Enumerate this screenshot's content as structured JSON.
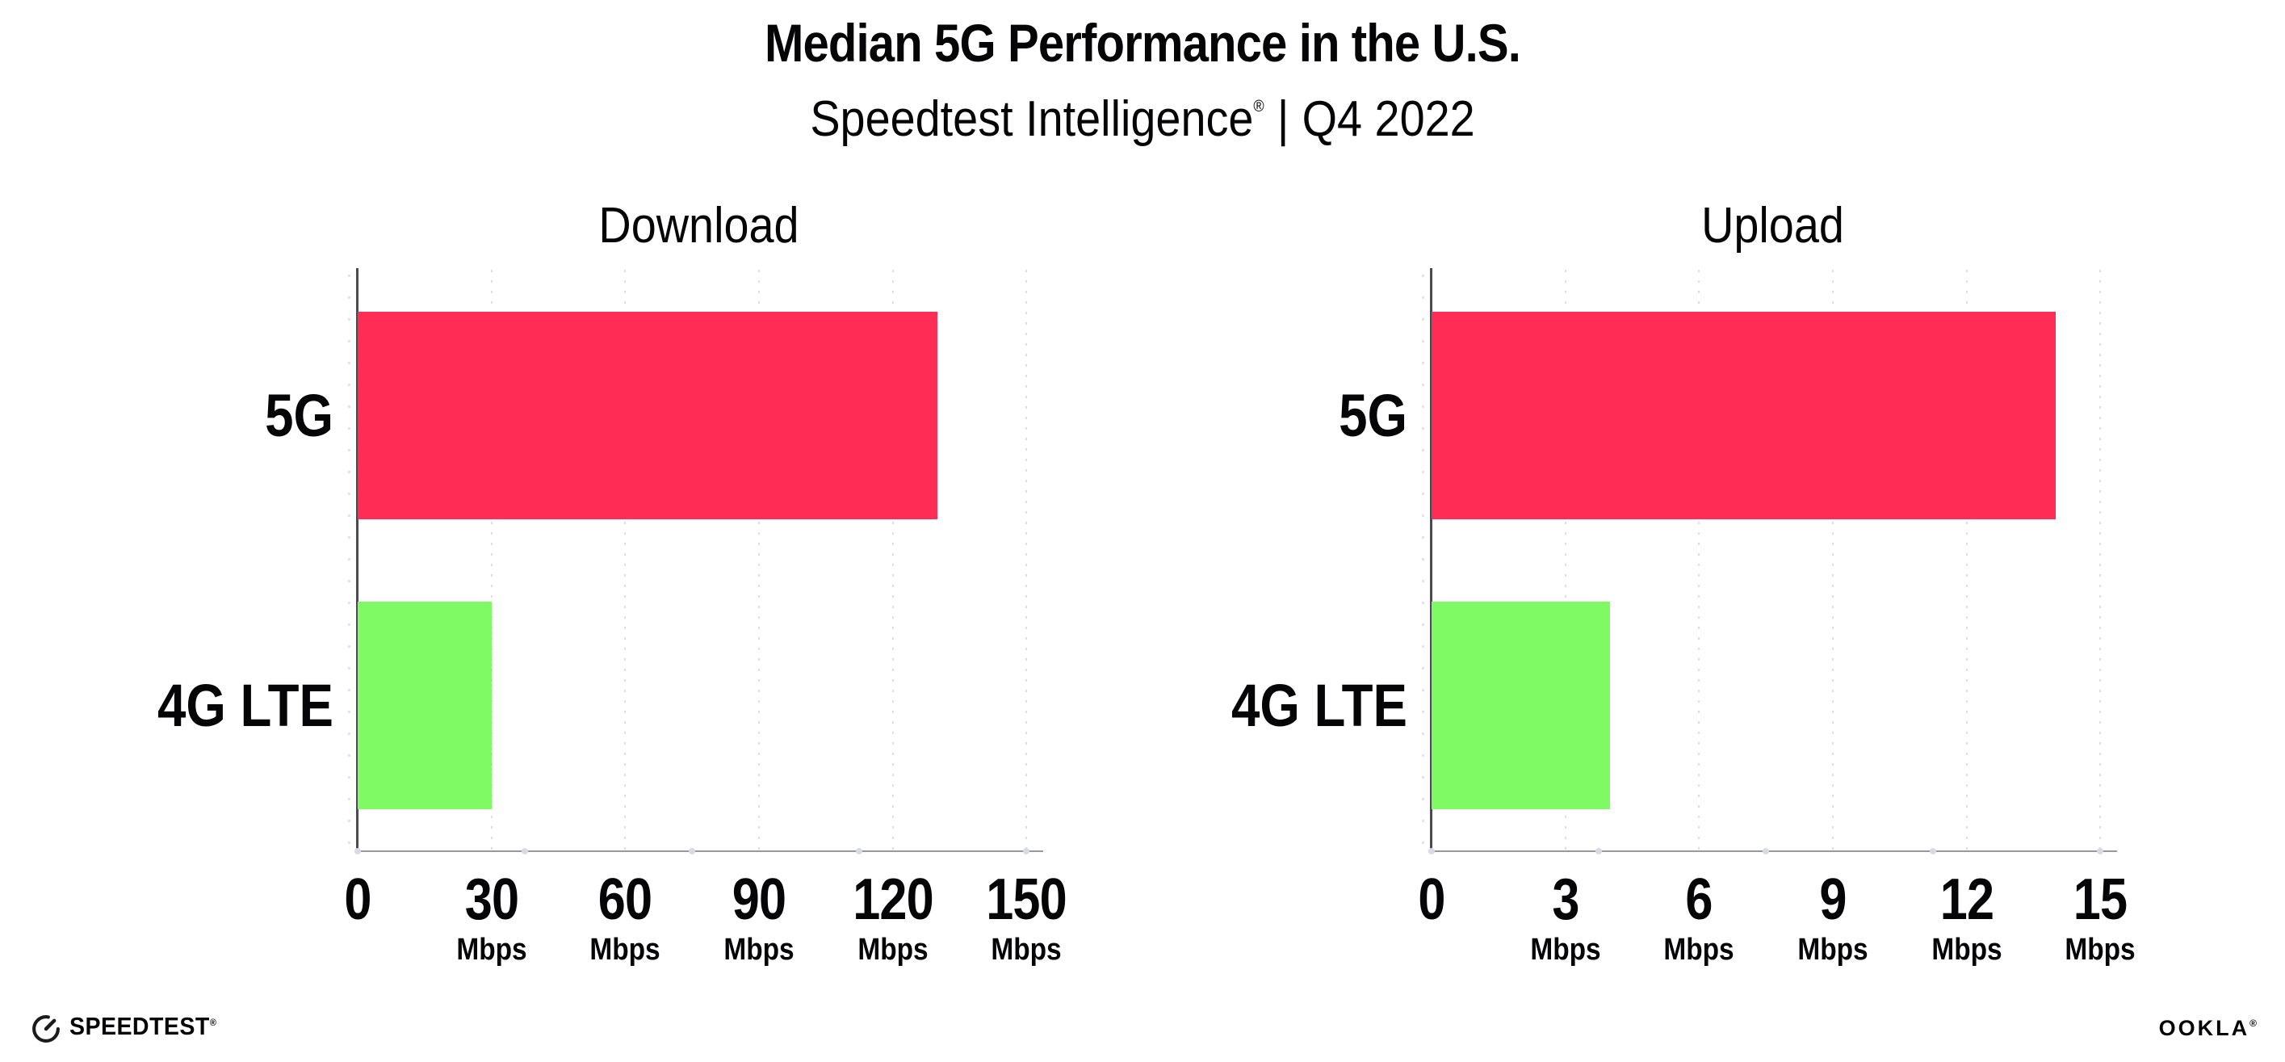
{
  "header": {
    "title": "Median 5G Performance in the U.S.",
    "subtitle": {
      "brand": "Speedtest Intelligence",
      "registered_mark": "®",
      "separator": "|",
      "period": "Q4 2022"
    }
  },
  "chart_data": [
    {
      "type": "bar",
      "orientation": "horizontal",
      "title": "Download",
      "categories": [
        "5G",
        "4G LTE"
      ],
      "values": [
        130,
        30
      ],
      "unit": "Mbps",
      "xlabel": "",
      "ylabel": "",
      "xlim": [
        0,
        153
      ],
      "xticks": [
        0,
        30,
        60,
        90,
        120,
        150
      ],
      "xtick_unit_label": "Mbps",
      "grid": "vertical-dotted",
      "legend": "none",
      "bar_colors": [
        "#ff2d55",
        "#7ffa65"
      ]
    },
    {
      "type": "bar",
      "orientation": "horizontal",
      "title": "Upload",
      "categories": [
        "5G",
        "4G LTE"
      ],
      "values": [
        14,
        4
      ],
      "unit": "Mbps",
      "xlabel": "",
      "ylabel": "",
      "xlim": [
        0,
        15.3
      ],
      "xticks": [
        0,
        3,
        6,
        9,
        12,
        15
      ],
      "xtick_unit_label": "Mbps",
      "grid": "vertical-dotted",
      "legend": "none",
      "bar_colors": [
        "#ff2d55",
        "#7ffa65"
      ]
    }
  ],
  "footer": {
    "speedtest_logo_text": "SPEEDTEST",
    "speedtest_mark": "®",
    "speedtest_icon": "speedtest-gauge-icon",
    "ookla_logo_text": "OOKLA",
    "ookla_mark": "®"
  },
  "colors": {
    "bar_5g": "#ff2d55",
    "bar_4g_lte": "#7ffa65",
    "y_axis_line": "#4a4a52",
    "x_axis_line": "#98989f",
    "gridline": "#dcdde8",
    "text": "#050507",
    "background": "#ffffff"
  }
}
